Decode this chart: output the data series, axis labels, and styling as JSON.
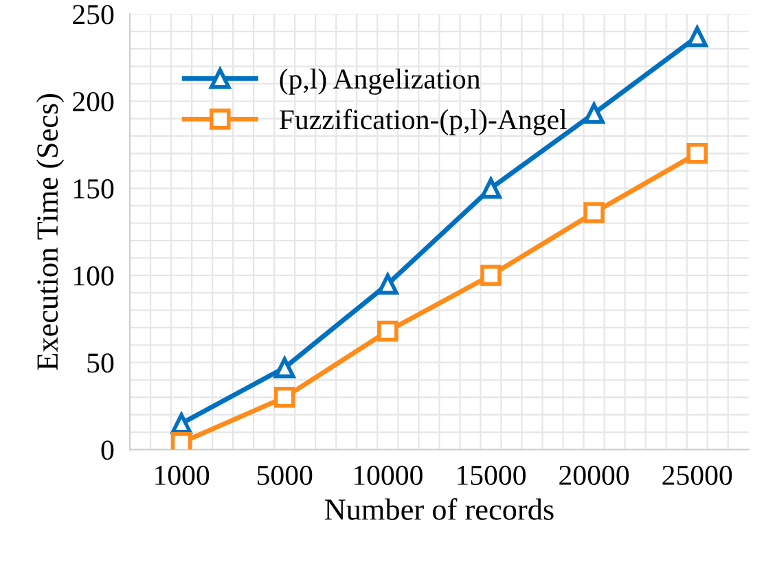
{
  "chart_data": {
    "type": "line",
    "xlabel": "Number of records",
    "ylabel": "Execution Time (Secs)",
    "categories": [
      "1000",
      "5000",
      "10000",
      "15000",
      "20000",
      "25000"
    ],
    "series": [
      {
        "name": "(p,l) Angelization",
        "color": "#0070c0",
        "marker": "triangle",
        "values": [
          15,
          47,
          95,
          150,
          193,
          237
        ]
      },
      {
        "name": "Fuzzification-(p,l)-Angel",
        "color": "#ff8c1a",
        "marker": "square",
        "values": [
          4,
          30,
          68,
          100,
          136,
          170
        ]
      }
    ],
    "ylim": [
      0,
      250
    ],
    "yticks": [
      0,
      50,
      100,
      150,
      200,
      250
    ],
    "grid": true,
    "legend": "top left",
    "line_style": "solid"
  }
}
